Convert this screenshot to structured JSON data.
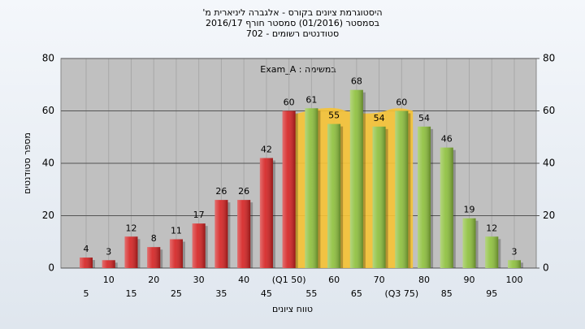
{
  "chart_data": {
    "type": "bar",
    "title": [
      "היסטוגרמת ציונים בקורס - אלגברה ליניארית מ'",
      "בסמסטר (01/2016) סמסטר חורף 2016/17",
      "סטודנטים רשומים - 702"
    ],
    "annotation": "במשימה : Exam_A",
    "x_label": "טווח ציונים",
    "y_label": "מספר סטודנטים",
    "categories": [
      "5",
      "10",
      "15",
      "20",
      "25",
      "30",
      "35",
      "40",
      "45",
      "(Q1 50)",
      "55",
      "60",
      "65",
      "70",
      "(Q3 75)",
      "80",
      "85",
      "90",
      "95",
      "100"
    ],
    "values": [
      4,
      3,
      12,
      8,
      11,
      17,
      26,
      26,
      42,
      60,
      61,
      55,
      68,
      54,
      60,
      54,
      46,
      19,
      12,
      3
    ],
    "colors": [
      "#d42020",
      "#d42020",
      "#d42020",
      "#d42020",
      "#d42020",
      "#d42020",
      "#d42020",
      "#d42020",
      "#d42020",
      "#d42020",
      "#8cbf3a",
      "#8cbf3a",
      "#8cbf3a",
      "#8cbf3a",
      "#8cbf3a",
      "#8cbf3a",
      "#8cbf3a",
      "#8cbf3a",
      "#8cbf3a",
      "#8cbf3a"
    ],
    "ylim": [
      0,
      80
    ],
    "yticks": [
      0,
      20,
      40,
      60,
      80
    ],
    "y2lim": [
      0,
      80
    ],
    "y2ticks": [
      0,
      20,
      40,
      60,
      80
    ],
    "grid": true
  }
}
